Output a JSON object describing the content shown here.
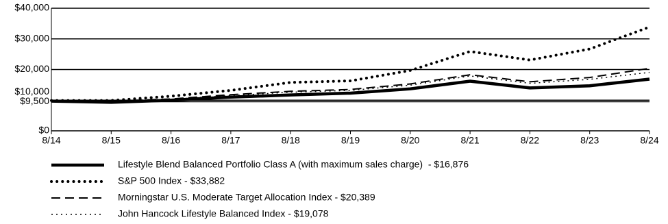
{
  "chart_data": {
    "type": "line",
    "categories": [
      "8/14",
      "8/15",
      "8/16",
      "8/17",
      "8/18",
      "8/19",
      "8/20",
      "8/21",
      "8/22",
      "8/23",
      "8/24"
    ],
    "series": [
      {
        "name": "Lifestyle Blend Balanced Portfolio Class A (with maximum sales charge)  - $16,876",
        "color": "#000000",
        "style": "solid",
        "values": [
          9700,
          9300,
          10000,
          11000,
          11700,
          12300,
          13700,
          16200,
          14000,
          14700,
          16876
        ]
      },
      {
        "name": "S&P 500 Index - $33,882",
        "color": "#000000",
        "style": "dotted",
        "values": [
          9900,
          9900,
          11300,
          13200,
          15800,
          16300,
          19700,
          25900,
          23100,
          26700,
          33882
        ]
      },
      {
        "name": "Morningstar U.S. Moderate Target Allocation Index - $20,389",
        "color": "#000000",
        "style": "dashed",
        "values": [
          9800,
          9700,
          10400,
          11800,
          12900,
          13500,
          15300,
          18300,
          16000,
          17400,
          20389
        ]
      },
      {
        "name": "John Hancock Lifestyle Balanced Index - $19,078",
        "color": "#000000",
        "style": "fine-dotted",
        "values": [
          9800,
          9600,
          10300,
          11500,
          12600,
          13200,
          14900,
          17900,
          15500,
          16800,
          19078
        ]
      }
    ],
    "ylim": [
      0,
      40000
    ],
    "yticks": [
      {
        "value": 0,
        "label": "$0"
      },
      {
        "value": 9500,
        "label": "$9,500"
      },
      {
        "value": 10000,
        "label": "$10,000"
      },
      {
        "value": 20000,
        "label": "$20,000"
      },
      {
        "value": 30000,
        "label": "$30,000"
      },
      {
        "value": 40000,
        "label": "$40,000"
      }
    ],
    "grid": true
  }
}
